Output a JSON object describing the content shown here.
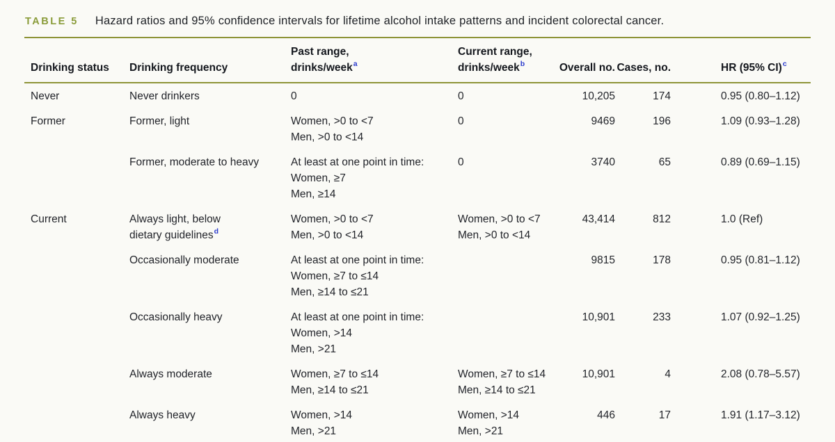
{
  "colors": {
    "bg": "#fafaf6",
    "accent": "#8a9c3a",
    "rule": "#8d9336",
    "sup": "#2b3bcd"
  },
  "table": {
    "label": "TABLE 5",
    "caption": "Hazard ratios and 95% confidence intervals for lifetime alcohol intake patterns and incident colorectal cancer.",
    "columns": [
      {
        "key": "status",
        "lines": [
          "Drinking status"
        ],
        "sup": ""
      },
      {
        "key": "frequency",
        "lines": [
          "Drinking frequency"
        ],
        "sup": ""
      },
      {
        "key": "past",
        "lines": [
          "Past range,",
          "drinks/week"
        ],
        "sup": "a"
      },
      {
        "key": "current",
        "lines": [
          "Current range,",
          "drinks/week"
        ],
        "sup": "b"
      },
      {
        "key": "overall",
        "lines": [
          "Overall no."
        ],
        "sup": ""
      },
      {
        "key": "cases",
        "lines": [
          "Cases, no."
        ],
        "sup": ""
      },
      {
        "key": "hr",
        "lines": [
          "HR (95% CI)"
        ],
        "sup": "c"
      }
    ],
    "rows": [
      {
        "status": "Never",
        "frequency": {
          "lines": [
            "Never drinkers"
          ],
          "sup": ""
        },
        "past": [
          "0"
        ],
        "current": [
          "0"
        ],
        "overall": "10,205",
        "cases": "174",
        "hr": "0.95 (0.80–1.12)"
      },
      {
        "status": "Former",
        "frequency": {
          "lines": [
            "Former, light"
          ],
          "sup": ""
        },
        "past": [
          "Women, >0 to <7",
          "Men, >0 to <14"
        ],
        "current": [
          "0"
        ],
        "overall": "9469",
        "cases": "196",
        "hr": "1.09 (0.93–1.28)"
      },
      {
        "status": "",
        "frequency": {
          "lines": [
            "Former, moderate to heavy"
          ],
          "sup": ""
        },
        "past": [
          "At least at one point in time:",
          "Women, ≥7",
          "Men, ≥14"
        ],
        "current": [
          "0"
        ],
        "overall": "3740",
        "cases": "65",
        "hr": "0.89 (0.69–1.15)"
      },
      {
        "status": "Current",
        "frequency": {
          "lines": [
            "Always light, below",
            "dietary guidelines"
          ],
          "sup": "d"
        },
        "past": [
          "Women, >0 to <7",
          "Men, >0 to <14"
        ],
        "current": [
          "Women, >0 to <7",
          "Men, >0 to <14"
        ],
        "overall": "43,414",
        "cases": "812",
        "hr": "1.0 (Ref)"
      },
      {
        "status": "",
        "frequency": {
          "lines": [
            "Occasionally moderate"
          ],
          "sup": ""
        },
        "past": [
          "At least at one point in time:",
          "Women, ≥7 to ≤14",
          "Men, ≥14 to ≤21"
        ],
        "current": [],
        "overall": "9815",
        "cases": "178",
        "hr": "0.95 (0.81–1.12)"
      },
      {
        "status": "",
        "frequency": {
          "lines": [
            "Occasionally heavy"
          ],
          "sup": ""
        },
        "past": [
          "At least at one point in time:",
          "Women, >14",
          "Men, >21"
        ],
        "current": [],
        "overall": "10,901",
        "cases": "233",
        "hr": "1.07 (0.92–1.25)"
      },
      {
        "status": "",
        "frequency": {
          "lines": [
            "Always moderate"
          ],
          "sup": ""
        },
        "past": [
          "Women, ≥7 to ≤14",
          "Men, ≥14 to ≤21"
        ],
        "current": [
          "Women, ≥7 to ≤14",
          "Men, ≥14 to ≤21"
        ],
        "overall": "10,901",
        "cases": "4",
        "hr": "2.08 (0.78–5.57)"
      },
      {
        "status": "",
        "frequency": {
          "lines": [
            "Always heavy"
          ],
          "sup": ""
        },
        "past": [
          "Women, >14",
          "Men, >21"
        ],
        "current": [
          "Women, >14",
          "Men, >21"
        ],
        "overall": "446",
        "cases": "17",
        "hr": "1.91 (1.17–3.12)"
      }
    ]
  }
}
